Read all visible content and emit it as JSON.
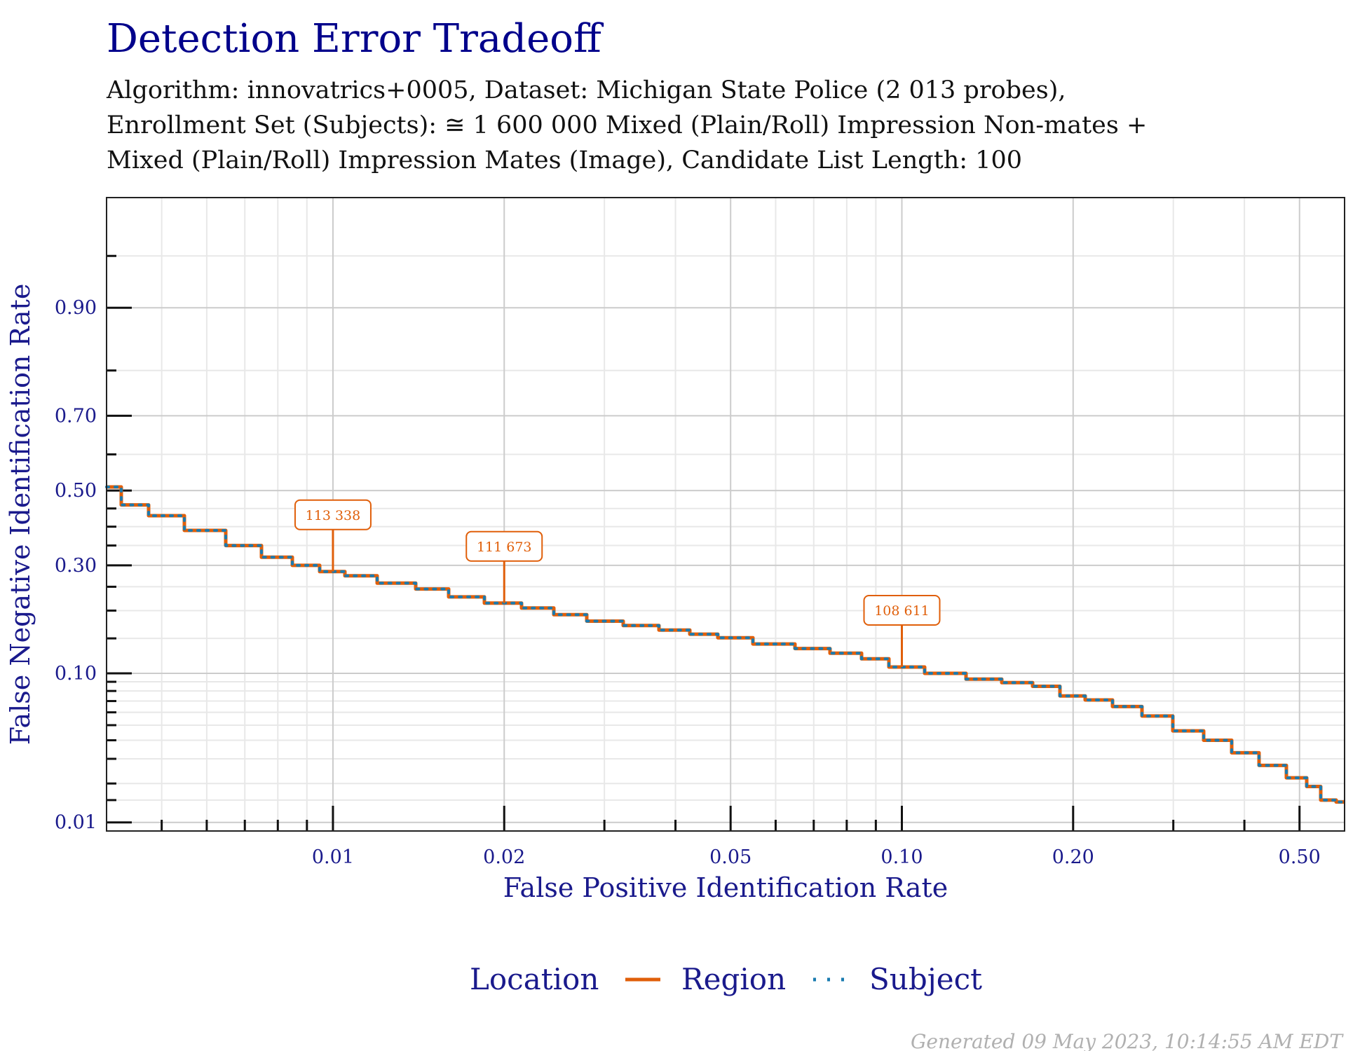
{
  "chart_data": {
    "type": "line",
    "title": "Detection Error Tradeoff",
    "subtitle": [
      "Algorithm: innovatrics+0005, Dataset: Michigan State Police (2 013 probes),",
      "Enrollment Set (Subjects): ≅ 1 600 000 Mixed (Plain/Roll) Impression Non-mates +",
      "Mixed (Plain/Roll) Impression Mates (Image), Candidate List Length: 100"
    ],
    "xlabel": "False Positive Identification Rate",
    "ylabel": "False Negative Identification Rate",
    "x_scale": "log",
    "y_scale": "probit",
    "xlim": [
      0.004,
      0.6
    ],
    "ylim": [
      0.0085,
      0.98
    ],
    "x_ticks": [
      0.01,
      0.02,
      0.05,
      0.1,
      0.2,
      0.5
    ],
    "x_tick_labels": [
      "0.01",
      "0.02",
      "0.05",
      "0.10",
      "0.20",
      "0.50"
    ],
    "y_ticks": [
      0.01,
      0.1,
      0.3,
      0.5,
      0.7,
      0.9
    ],
    "y_tick_labels": [
      "0.01",
      "0.10",
      "0.30",
      "0.50",
      "0.70",
      "0.90"
    ],
    "grid": true,
    "legend": {
      "position": "bottom",
      "title": "Location",
      "entries": [
        {
          "label": "Region",
          "style": "solid",
          "color": "#e05f0a"
        },
        {
          "label": "Subject",
          "style": "dotted",
          "color": "#1a7bb0"
        }
      ]
    },
    "series": [
      {
        "name": "Region",
        "color": "#e05f0a",
        "x": [
          0.004,
          0.0045,
          0.005,
          0.006,
          0.007,
          0.008,
          0.009,
          0.01,
          0.011,
          0.013,
          0.015,
          0.017,
          0.02,
          0.023,
          0.026,
          0.03,
          0.035,
          0.04,
          0.045,
          0.05,
          0.06,
          0.07,
          0.08,
          0.09,
          0.1,
          0.12,
          0.14,
          0.16,
          0.18,
          0.2,
          0.22,
          0.25,
          0.28,
          0.32,
          0.36,
          0.4,
          0.45,
          0.5,
          0.53,
          0.56,
          0.6
        ],
        "y": [
          0.51,
          0.46,
          0.43,
          0.39,
          0.35,
          0.32,
          0.3,
          0.285,
          0.275,
          0.258,
          0.245,
          0.228,
          0.215,
          0.205,
          0.192,
          0.18,
          0.172,
          0.164,
          0.157,
          0.151,
          0.141,
          0.134,
          0.127,
          0.119,
          0.108,
          0.1,
          0.093,
          0.089,
          0.085,
          0.075,
          0.071,
          0.065,
          0.057,
          0.046,
          0.04,
          0.033,
          0.027,
          0.022,
          0.019,
          0.015,
          0.0145
        ]
      },
      {
        "name": "Subject",
        "color": "#1a7bb0",
        "x": [
          0.004,
          0.0045,
          0.005,
          0.006,
          0.007,
          0.008,
          0.009,
          0.01,
          0.011,
          0.013,
          0.015,
          0.017,
          0.02,
          0.023,
          0.026,
          0.03,
          0.035,
          0.04,
          0.045,
          0.05,
          0.06,
          0.07,
          0.08,
          0.09,
          0.1,
          0.12,
          0.14,
          0.16,
          0.18,
          0.2,
          0.22,
          0.25,
          0.28,
          0.32,
          0.36,
          0.4,
          0.45,
          0.5,
          0.53,
          0.56,
          0.6
        ],
        "y": [
          0.51,
          0.46,
          0.43,
          0.39,
          0.35,
          0.32,
          0.3,
          0.285,
          0.275,
          0.258,
          0.245,
          0.228,
          0.215,
          0.205,
          0.192,
          0.18,
          0.172,
          0.164,
          0.157,
          0.151,
          0.141,
          0.134,
          0.127,
          0.119,
          0.108,
          0.1,
          0.093,
          0.089,
          0.085,
          0.075,
          0.071,
          0.065,
          0.057,
          0.046,
          0.04,
          0.033,
          0.027,
          0.022,
          0.019,
          0.015,
          0.0145
        ]
      }
    ],
    "annotations": [
      {
        "label": "113 338",
        "x": 0.01,
        "y": 0.285
      },
      {
        "label": "111 673",
        "x": 0.02,
        "y": 0.215
      },
      {
        "label": "108 611",
        "x": 0.1,
        "y": 0.108
      }
    ],
    "footer": "Generated 09 May 2023, 10:14:55 AM EDT"
  },
  "colors": {
    "title": "#00008b",
    "axis_text": "#1a1a8c",
    "region": "#e05f0a",
    "subject": "#1a7bb0",
    "grid_major": "#cccccc",
    "grid_minor": "#e8e8e8",
    "footer": "#b0b0b0"
  }
}
